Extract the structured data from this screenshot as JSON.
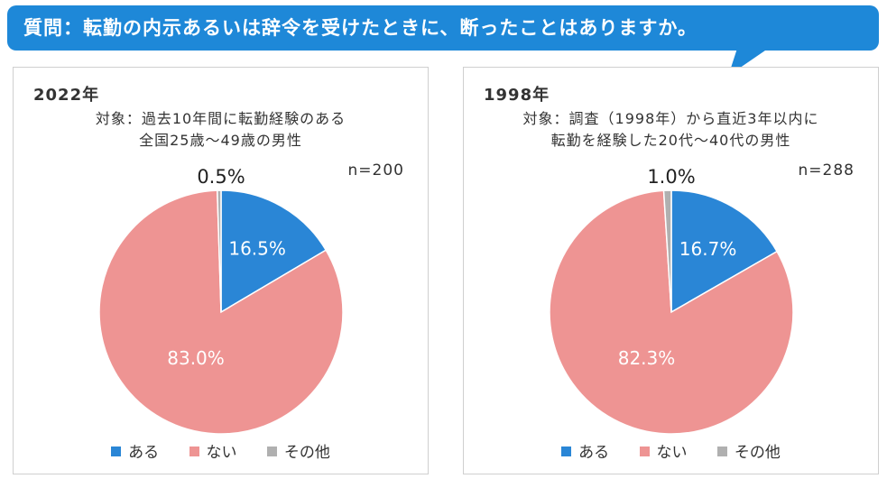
{
  "question": "質問：転勤の内示あるいは辞令を受けたときに、断ったことはありますか。",
  "colors": {
    "banner": "#1e88d8",
    "aru": "#2a86d6",
    "nai": "#ee9493",
    "sonota": "#b0b0b0"
  },
  "legend": [
    "ある",
    "ない",
    "その他"
  ],
  "chart_data": [
    {
      "type": "pie",
      "title": "2022年",
      "subtitle": [
        "対象：過去10年間に転勤経験のある",
        "全国25歳～49歳の男性"
      ],
      "n_label": "n=200",
      "categories": [
        "ある",
        "ない",
        "その他"
      ],
      "values": [
        16.5,
        83.0,
        0.5
      ],
      "data_labels": [
        "16.5%",
        "83.0%",
        "0.5%"
      ],
      "legend_position": "bottom"
    },
    {
      "type": "pie",
      "title": "1998年",
      "subtitle": [
        "対象：調査（1998年）から直近3年以内に",
        "転勤を経験した20代～40代の男性"
      ],
      "n_label": "n=288",
      "categories": [
        "ある",
        "ない",
        "その他"
      ],
      "values": [
        16.7,
        82.3,
        1.0
      ],
      "data_labels": [
        "16.7%",
        "82.3%",
        "1.0%"
      ],
      "legend_position": "bottom"
    }
  ]
}
